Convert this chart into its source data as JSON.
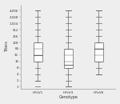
{
  "genotypes": [
    "HPeV1",
    "HPeV3",
    "HPeV6"
  ],
  "xlabel": "Genotype",
  "ylabel": "Titers",
  "ytick_labels": [
    "1",
    "2",
    "4",
    "8",
    "16",
    "32",
    "64",
    "128",
    "256",
    "512",
    "1,024",
    "2,048",
    "4,096"
  ],
  "boxes": [
    {
      "q1": 4,
      "median": 5,
      "q3": 7,
      "p5": 1,
      "p95": 12
    },
    {
      "q1": 3,
      "median": 3.5,
      "q3": 6,
      "p5": 0,
      "p95": 12
    },
    {
      "q1": 4,
      "median": 6,
      "q3": 7,
      "p5": 2,
      "p95": 12
    }
  ],
  "tick_marks": [
    [
      0,
      1,
      2,
      3,
      4,
      5,
      6,
      7,
      8,
      9,
      10,
      11,
      12
    ],
    [
      0,
      1,
      2,
      3,
      4,
      5,
      6,
      7,
      8,
      9,
      10,
      11,
      12
    ],
    [
      2,
      3,
      4,
      5,
      6,
      7,
      8,
      9,
      10,
      11,
      12
    ]
  ],
  "box_color": "#ffffff",
  "box_edge_color": "#666666",
  "line_color": "#666666",
  "whisker_color": "#666666",
  "background_color": "#eeeeee",
  "plot_bg": "#eeeeee"
}
